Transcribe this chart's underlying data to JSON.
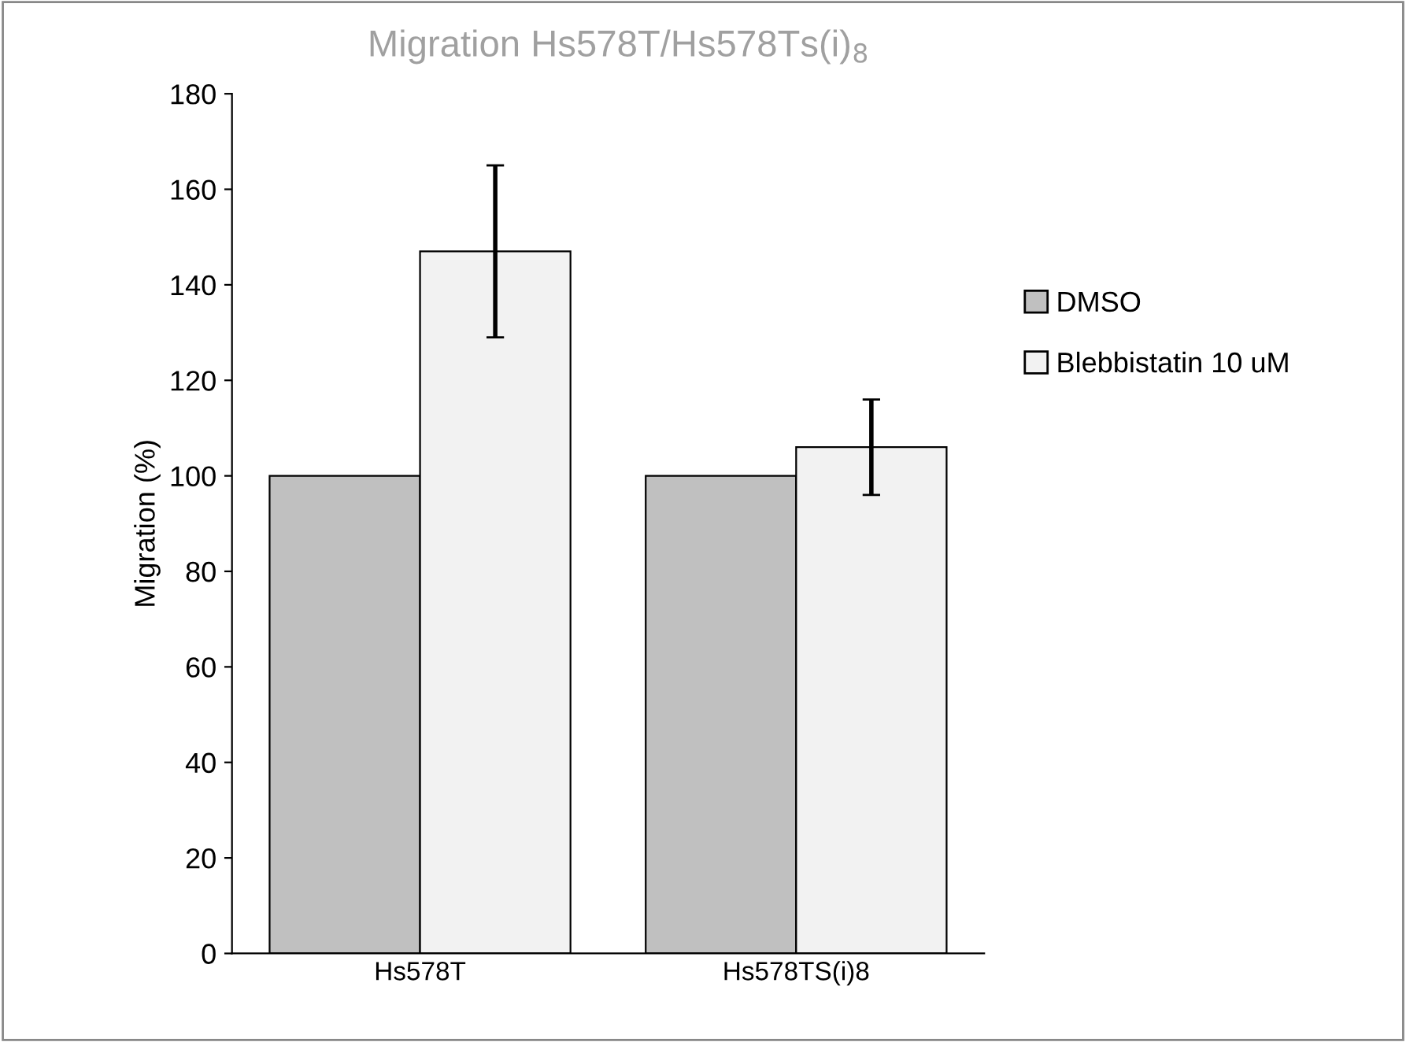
{
  "chart_data": {
    "type": "bar",
    "title": "Migration Hs578T/Hs578Ts(i)$_{8}$",
    "ylabel": "Migration (%)",
    "categories": [
      "Hs578T",
      "Hs578TS(i)8"
    ],
    "series": [
      {
        "name": "DMSO",
        "color": "#c0c0c0",
        "values": [
          100,
          100
        ]
      },
      {
        "name": "Blebbistatin 10 uM",
        "color": "#f2f2f2",
        "values": [
          147,
          106
        ],
        "errors": [
          18,
          10
        ]
      }
    ],
    "ylim": [
      0,
      180
    ],
    "yticks": [
      0,
      20,
      40,
      60,
      80,
      100,
      120,
      140,
      160,
      180
    ],
    "grid": false,
    "legend": "right"
  }
}
